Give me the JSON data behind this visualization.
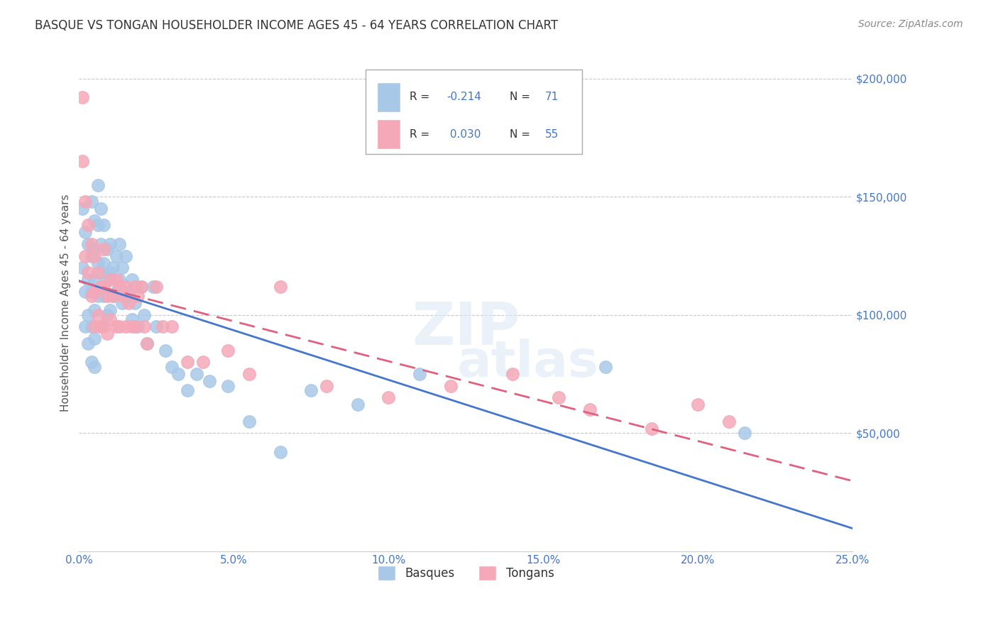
{
  "title": "BASQUE VS TONGAN HOUSEHOLDER INCOME AGES 45 - 64 YEARS CORRELATION CHART",
  "source": "Source: ZipAtlas.com",
  "ylabel": "Householder Income Ages 45 - 64 years",
  "xlim": [
    0.0,
    0.25
  ],
  "ylim": [
    0,
    210000
  ],
  "xticks": [
    0.0,
    0.05,
    0.1,
    0.15,
    0.2,
    0.25
  ],
  "xticklabels": [
    "0.0%",
    "5.0%",
    "10.0%",
    "15.0%",
    "20.0%",
    "25.0%"
  ],
  "yticks": [
    50000,
    100000,
    150000,
    200000
  ],
  "yticklabels": [
    "$50,000",
    "$100,000",
    "$150,000",
    "$200,000"
  ],
  "basque_color": "#a8c8e8",
  "tongan_color": "#f4a8b8",
  "basque_line_color": "#4477cc",
  "tongan_line_color": "#e06080",
  "R_basque": -0.214,
  "N_basque": 71,
  "R_tongan": 0.03,
  "N_tongan": 55,
  "background_color": "#ffffff",
  "grid_color": "#c8c8c8",
  "basque_x": [
    0.001,
    0.001,
    0.002,
    0.002,
    0.002,
    0.003,
    0.003,
    0.003,
    0.003,
    0.004,
    0.004,
    0.004,
    0.004,
    0.004,
    0.005,
    0.005,
    0.005,
    0.005,
    0.005,
    0.005,
    0.006,
    0.006,
    0.006,
    0.006,
    0.007,
    0.007,
    0.007,
    0.007,
    0.008,
    0.008,
    0.008,
    0.009,
    0.009,
    0.009,
    0.01,
    0.01,
    0.01,
    0.011,
    0.011,
    0.012,
    0.012,
    0.013,
    0.013,
    0.014,
    0.014,
    0.015,
    0.015,
    0.016,
    0.017,
    0.017,
    0.018,
    0.019,
    0.02,
    0.021,
    0.022,
    0.024,
    0.025,
    0.028,
    0.03,
    0.032,
    0.035,
    0.038,
    0.042,
    0.048,
    0.055,
    0.065,
    0.075,
    0.09,
    0.11,
    0.17,
    0.215
  ],
  "basque_y": [
    120000,
    145000,
    135000,
    110000,
    95000,
    130000,
    115000,
    100000,
    88000,
    148000,
    125000,
    110000,
    95000,
    80000,
    140000,
    128000,
    115000,
    102000,
    90000,
    78000,
    155000,
    138000,
    122000,
    108000,
    145000,
    130000,
    118000,
    95000,
    138000,
    122000,
    108000,
    128000,
    115000,
    100000,
    130000,
    118000,
    102000,
    120000,
    108000,
    125000,
    110000,
    130000,
    115000,
    120000,
    105000,
    125000,
    108000,
    110000,
    115000,
    98000,
    105000,
    95000,
    112000,
    100000,
    88000,
    112000,
    95000,
    85000,
    78000,
    75000,
    68000,
    75000,
    72000,
    70000,
    55000,
    42000,
    68000,
    62000,
    75000,
    78000,
    50000
  ],
  "tongan_x": [
    0.001,
    0.001,
    0.002,
    0.002,
    0.003,
    0.003,
    0.004,
    0.004,
    0.005,
    0.005,
    0.005,
    0.006,
    0.006,
    0.007,
    0.007,
    0.008,
    0.008,
    0.008,
    0.009,
    0.009,
    0.01,
    0.01,
    0.011,
    0.012,
    0.012,
    0.013,
    0.013,
    0.014,
    0.015,
    0.015,
    0.016,
    0.017,
    0.018,
    0.018,
    0.019,
    0.02,
    0.021,
    0.022,
    0.025,
    0.027,
    0.03,
    0.035,
    0.04,
    0.048,
    0.055,
    0.065,
    0.08,
    0.1,
    0.12,
    0.14,
    0.155,
    0.165,
    0.185,
    0.2,
    0.21
  ],
  "tongan_y": [
    192000,
    165000,
    148000,
    125000,
    138000,
    118000,
    130000,
    108000,
    125000,
    110000,
    95000,
    118000,
    100000,
    112000,
    95000,
    128000,
    112000,
    95000,
    108000,
    92000,
    115000,
    98000,
    108000,
    115000,
    95000,
    112000,
    95000,
    108000,
    112000,
    95000,
    105000,
    95000,
    112000,
    95000,
    108000,
    112000,
    95000,
    88000,
    112000,
    95000,
    95000,
    80000,
    80000,
    85000,
    75000,
    112000,
    70000,
    65000,
    70000,
    75000,
    65000,
    60000,
    52000,
    62000,
    55000
  ]
}
